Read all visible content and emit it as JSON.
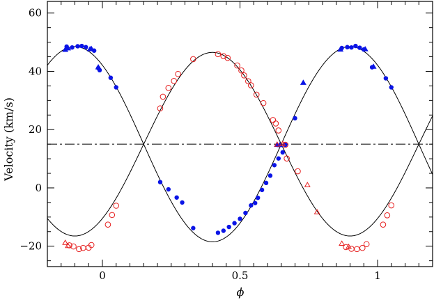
{
  "chart_data": {
    "type": "scatter",
    "xlabel": "ϕ",
    "ylabel": "Velocity (km/s)",
    "xlim": [
      -0.2,
      1.2
    ],
    "ylim": [
      -27,
      64
    ],
    "x_ticks": [
      0,
      0.5,
      1
    ],
    "x_tick_labels": [
      "0",
      "0.5",
      "1"
    ],
    "y_ticks": [
      -20,
      0,
      20,
      40,
      60
    ],
    "y_tick_labels": [
      "−20",
      "0",
      "20",
      "40",
      "60"
    ],
    "gamma_velocity": 15,
    "grid": false,
    "legend": "none",
    "colors": {
      "primary": "#0a14e6",
      "secondary": "#e61e1e",
      "model": "#000000"
    },
    "model_curves": [
      {
        "gamma": 15,
        "amplitude": 31.5,
        "phase_of_max": 0.4
      },
      {
        "gamma": 15,
        "amplitude": 33.5,
        "phase_of_max": 0.9
      }
    ],
    "series": [
      {
        "marker": "filled-circle",
        "color": "#0a14e6",
        "points": [
          [
            -0.13,
            48.5
          ],
          [
            -0.11,
            48.2
          ],
          [
            -0.09,
            48.6
          ],
          [
            -0.075,
            48.7
          ],
          [
            -0.06,
            48.3
          ],
          [
            -0.03,
            47.1
          ],
          [
            -0.015,
            41.1
          ],
          [
            -0.01,
            40.4
          ],
          [
            0.03,
            37.8
          ],
          [
            0.05,
            34.5
          ],
          [
            0.21,
            2.0
          ],
          [
            0.24,
            -0.5
          ],
          [
            0.27,
            -3.3
          ],
          [
            0.29,
            -5.0
          ],
          [
            0.33,
            -13.8
          ],
          [
            0.42,
            -15.4
          ],
          [
            0.44,
            -14.7
          ],
          [
            0.46,
            -13.4
          ],
          [
            0.48,
            -12.1
          ],
          [
            0.5,
            -10.6
          ],
          [
            0.52,
            -8.6
          ],
          [
            0.54,
            -6.0
          ],
          [
            0.555,
            -5.2
          ],
          [
            0.565,
            -3.4
          ],
          [
            0.58,
            -0.7
          ],
          [
            0.595,
            1.7
          ],
          [
            0.61,
            4.2
          ],
          [
            0.625,
            7.8
          ],
          [
            0.64,
            10.1
          ],
          [
            0.655,
            12.2
          ],
          [
            0.665,
            14.8
          ],
          [
            0.7,
            23.9
          ],
          [
            0.87,
            48.0
          ],
          [
            0.89,
            48.3
          ],
          [
            0.905,
            48.2
          ],
          [
            0.92,
            48.7
          ],
          [
            0.935,
            48.1
          ],
          [
            0.95,
            47.5
          ],
          [
            0.98,
            41.4
          ],
          [
            1.03,
            37.6
          ],
          [
            1.05,
            34.5
          ]
        ]
      },
      {
        "marker": "filled-triangle",
        "color": "#0a14e6",
        "points": [
          [
            -0.135,
            47.4
          ],
          [
            -0.125,
            47.9
          ],
          [
            -0.045,
            47.6
          ],
          [
            -0.04,
            47.7
          ],
          [
            -0.015,
            41.4
          ],
          [
            0.635,
            14.8
          ],
          [
            0.645,
            14.7
          ],
          [
            0.73,
            36.1
          ],
          [
            0.865,
            47.5
          ],
          [
            0.955,
            47.6
          ],
          [
            0.985,
            41.6
          ]
        ]
      },
      {
        "marker": "open-circle",
        "color": "#e61e1e",
        "points": [
          [
            -0.12,
            -19.7
          ],
          [
            -0.105,
            -20.1
          ],
          [
            -0.085,
            -21.0
          ],
          [
            -0.07,
            -20.6
          ],
          [
            -0.05,
            -20.5
          ],
          [
            -0.04,
            -19.6
          ],
          [
            0.02,
            -12.6
          ],
          [
            0.035,
            -9.3
          ],
          [
            0.05,
            -6.1
          ],
          [
            0.21,
            27.3
          ],
          [
            0.22,
            31.3
          ],
          [
            0.24,
            34.3
          ],
          [
            0.26,
            36.7
          ],
          [
            0.275,
            39.1
          ],
          [
            0.33,
            44.2
          ],
          [
            0.42,
            45.9
          ],
          [
            0.44,
            45.2
          ],
          [
            0.455,
            44.6
          ],
          [
            0.49,
            42.0
          ],
          [
            0.505,
            40.3
          ],
          [
            0.515,
            38.6
          ],
          [
            0.53,
            36.6
          ],
          [
            0.54,
            35.2
          ],
          [
            0.56,
            32.0
          ],
          [
            0.585,
            29.1
          ],
          [
            0.62,
            23.3
          ],
          [
            0.63,
            22.1
          ],
          [
            0.64,
            19.7
          ],
          [
            0.665,
            14.8
          ],
          [
            0.67,
            10.1
          ],
          [
            0.71,
            5.7
          ],
          [
            0.885,
            -20.3
          ],
          [
            0.905,
            -20.9
          ],
          [
            0.925,
            -21.0
          ],
          [
            0.945,
            -20.6
          ],
          [
            0.96,
            -19.3
          ],
          [
            1.02,
            -12.6
          ],
          [
            1.035,
            -9.4
          ],
          [
            1.05,
            -6.0
          ]
        ]
      },
      {
        "marker": "open-triangle",
        "color": "#e61e1e",
        "points": [
          [
            -0.135,
            -18.8
          ],
          [
            -0.125,
            -19.9
          ],
          [
            0.635,
            14.9
          ],
          [
            0.655,
            15.1
          ],
          [
            0.745,
            1.0
          ],
          [
            0.78,
            -8.3
          ],
          [
            0.87,
            -19.1
          ],
          [
            0.895,
            -20.2
          ]
        ]
      }
    ]
  }
}
